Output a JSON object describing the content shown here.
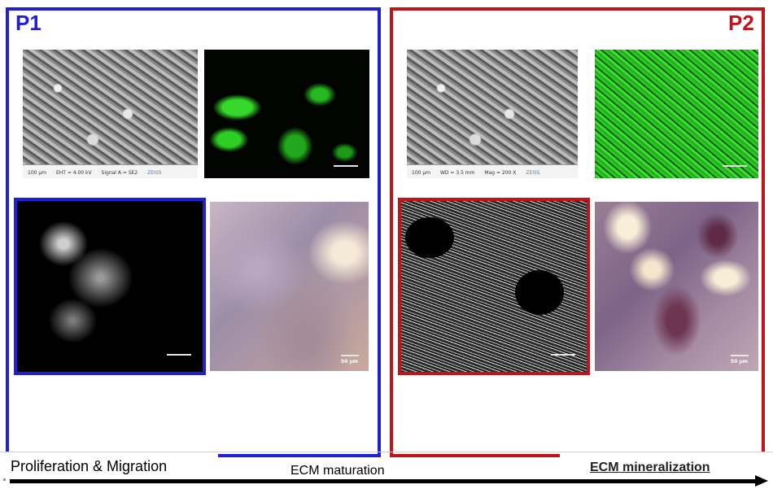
{
  "panels": {
    "p1": {
      "label": "P1",
      "color": "#1f1fd6"
    },
    "p2": {
      "label": "P2",
      "color": "#c0141a"
    }
  },
  "sem_info": {
    "scale": "100 µm",
    "eht": "EHT = 4.00 kV",
    "wd": "WD = 3.5 mm",
    "signal": "Signal A = SE2",
    "mag": "Mag = 200 X",
    "brand": "ZEISS"
  },
  "scale_label": "50 µm",
  "timeline": {
    "stage1": "Proliferation & Migration",
    "stage2": "ECM maturation",
    "stage3": "ECM mineralization"
  }
}
